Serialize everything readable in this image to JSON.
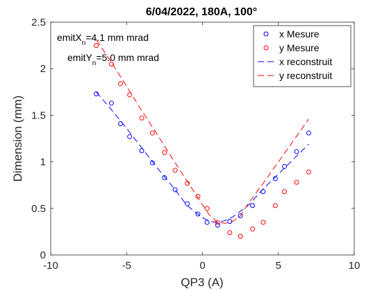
{
  "chart_data": {
    "type": "scatter",
    "title": "6/04/2022, 180A, 100°",
    "xlabel": "QP3 (A)",
    "ylabel": "Dimension (mm)",
    "xlim": [
      -10,
      10
    ],
    "ylim": [
      0,
      2.5
    ],
    "xticks": [
      -10,
      -5,
      0,
      5,
      10
    ],
    "xtick_labels": [
      "-10",
      "-5",
      "0",
      "5",
      "10"
    ],
    "yticks": [
      0,
      0.5,
      1,
      1.5,
      2,
      2.5
    ],
    "ytick_labels": [
      "0",
      "0.5",
      "1",
      "1.5",
      "2",
      "2.5"
    ],
    "grid": false,
    "legend_position": "top-right",
    "annotations": [
      {
        "prefix": "emitX",
        "sub": "n",
        "suffix": "=4.1 mm mrad"
      },
      {
        "prefix": "emitY",
        "sub": "n",
        "suffix": "=5.0 mm mrad"
      }
    ],
    "series": [
      {
        "name": "x Mesure",
        "style": "markers",
        "color": "#0000ff",
        "x": [
          -7.0,
          -6.0,
          -5.4,
          -4.8,
          -4.0,
          -3.3,
          -2.5,
          -1.8,
          -1.0,
          -0.3,
          0.3,
          1.0,
          1.8,
          2.5,
          3.3,
          4.0,
          4.8,
          5.4,
          6.2,
          7.0
        ],
        "y": [
          1.73,
          1.63,
          1.41,
          1.27,
          1.12,
          0.99,
          0.83,
          0.7,
          0.55,
          0.44,
          0.35,
          0.32,
          0.36,
          0.42,
          0.53,
          0.68,
          0.82,
          0.95,
          1.11,
          1.31
        ]
      },
      {
        "name": "y Mesure",
        "style": "markers",
        "color": "#ff0000",
        "x": [
          -7.0,
          -6.0,
          -5.4,
          -4.8,
          -4.0,
          -3.3,
          -2.5,
          -1.8,
          -1.0,
          -0.3,
          0.3,
          1.0,
          1.8,
          2.5,
          3.3,
          4.0,
          4.8,
          5.4,
          6.2,
          7.0
        ],
        "y": [
          2.25,
          2.05,
          1.84,
          1.72,
          1.47,
          1.31,
          1.1,
          0.91,
          0.77,
          0.63,
          0.5,
          0.35,
          0.24,
          0.2,
          0.28,
          0.35,
          0.53,
          0.68,
          0.78,
          0.89
        ]
      },
      {
        "name": "x reconstruit",
        "style": "dashed",
        "color": "#0000ff",
        "x": [
          -7.0,
          -6.0,
          -5.0,
          -4.0,
          -3.0,
          -2.0,
          -1.0,
          0.0,
          0.5,
          1.0,
          1.5,
          2.0,
          3.0,
          4.0,
          5.0,
          6.0,
          7.0
        ],
        "y": [
          1.75,
          1.56,
          1.36,
          1.15,
          0.94,
          0.74,
          0.53,
          0.4,
          0.36,
          0.35,
          0.37,
          0.41,
          0.53,
          0.71,
          0.87,
          1.03,
          1.19
        ]
      },
      {
        "name": "y reconstruit",
        "style": "dashed",
        "color": "#ff0000",
        "x": [
          -7.0,
          -6.0,
          -5.0,
          -4.0,
          -3.0,
          -2.0,
          -1.0,
          0.0,
          0.5,
          1.0,
          1.5,
          2.0,
          2.5,
          3.0,
          4.0,
          5.0,
          6.0,
          7.0
        ],
        "y": [
          2.31,
          2.07,
          1.81,
          1.55,
          1.3,
          1.04,
          0.79,
          0.54,
          0.42,
          0.35,
          0.34,
          0.36,
          0.42,
          0.55,
          0.77,
          1.0,
          1.23,
          1.46
        ]
      }
    ]
  }
}
